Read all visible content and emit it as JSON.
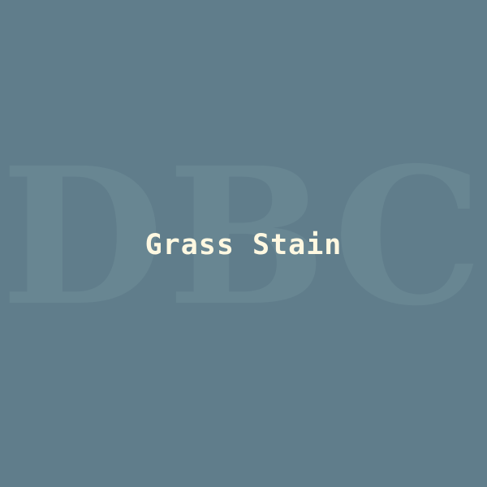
{
  "watermark": {
    "text": "DBC"
  },
  "title": {
    "text": "Grass Stain"
  },
  "colors": {
    "background": "#607d8b",
    "watermark": "#688692",
    "title": "#fff8e1"
  }
}
